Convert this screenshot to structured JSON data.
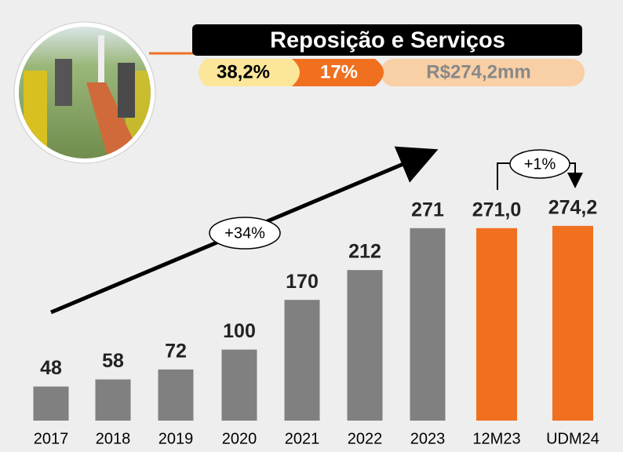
{
  "header": {
    "title": "Reposição e Serviços",
    "badges": [
      "38,2%",
      "17%",
      "R$274,2mm"
    ]
  },
  "chart_data": {
    "type": "bar",
    "categories": [
      "2017",
      "2018",
      "2019",
      "2020",
      "2021",
      "2022",
      "2023",
      "12M23",
      "UDM24"
    ],
    "values": [
      48,
      58,
      72,
      100,
      170,
      212,
      271,
      271.0,
      274.2
    ],
    "value_labels": [
      "48",
      "58",
      "72",
      "100",
      "170",
      "212",
      "271",
      "271,0",
      "274,2"
    ],
    "colors": [
      "#808080",
      "#808080",
      "#808080",
      "#808080",
      "#808080",
      "#808080",
      "#808080",
      "#f07020",
      "#f07020"
    ],
    "annotations": [
      "+34%",
      "+1%"
    ]
  }
}
